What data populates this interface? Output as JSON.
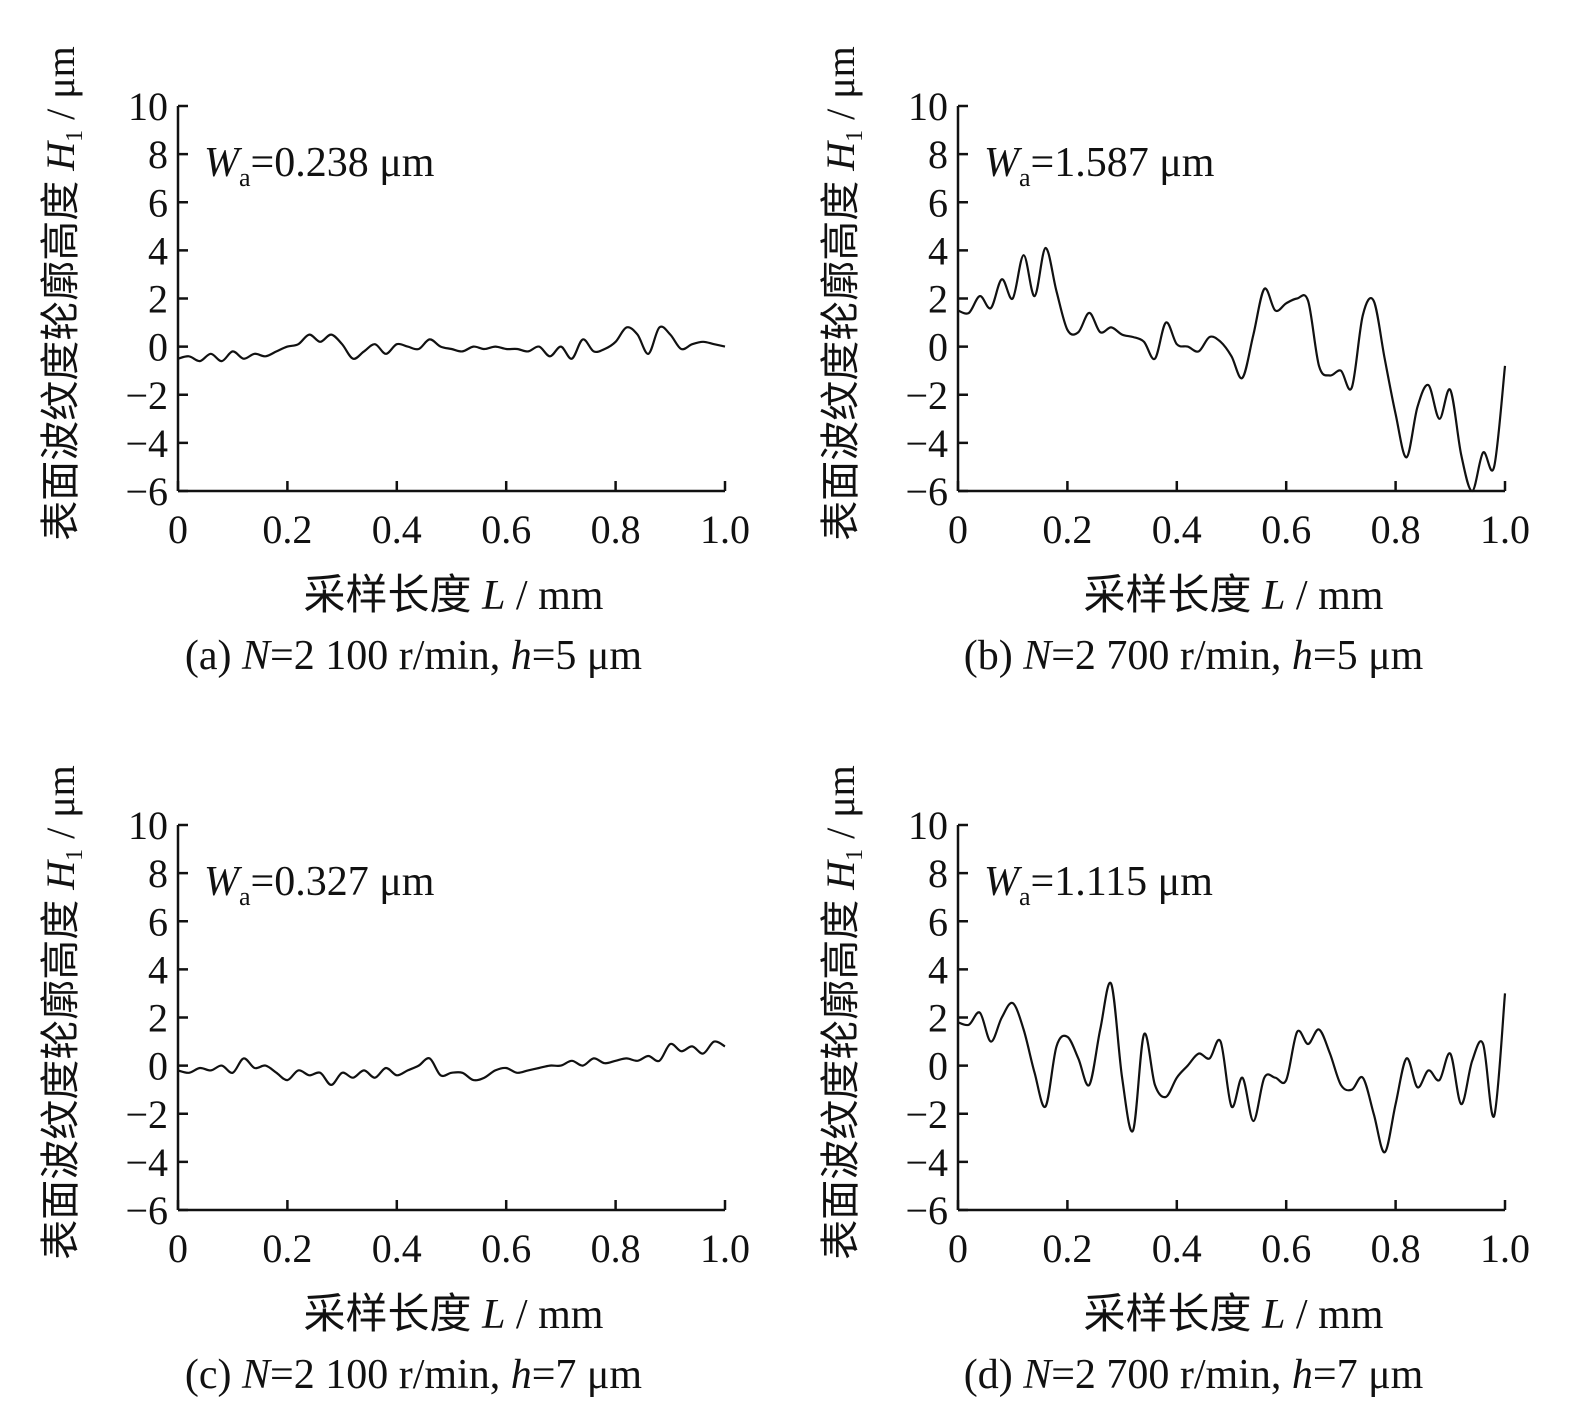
{
  "chart_data": [
    {
      "type": "line",
      "caption": "(a) N=2 100 r/min, h=5 μm",
      "caption_parts": {
        "prefix": "(a) ",
        "N_sym": "N",
        "N_val": "=2 100 r/min, ",
        "h_sym": "h",
        "h_val": "=5 μm"
      },
      "xlabel": "采样长度 L / mm",
      "xlabel_parts": {
        "pre": "采样长度 ",
        "sym": "L",
        "post": " / mm"
      },
      "ylabel": "表面波纹度轮廓高度 H1 / μm",
      "ylabel_parts": {
        "pre": "表面波纹度轮廓高度 ",
        "sym": "H",
        "sub": "1",
        "post": " / μm"
      },
      "annotation": {
        "sym": "W",
        "sub": "a",
        "value": "=0.238 μm"
      },
      "xlim": [
        0,
        1.0
      ],
      "ylim": [
        -6,
        10
      ],
      "xticks": [
        "0",
        "0.2",
        "0.4",
        "0.6",
        "0.8",
        "1.0"
      ],
      "yticks": [
        "10",
        "8",
        "6",
        "4",
        "2",
        "0",
        "−2",
        "−4",
        "−6"
      ],
      "x": [
        0,
        0.02,
        0.04,
        0.06,
        0.08,
        0.1,
        0.12,
        0.14,
        0.16,
        0.18,
        0.2,
        0.22,
        0.24,
        0.26,
        0.28,
        0.3,
        0.32,
        0.34,
        0.36,
        0.38,
        0.4,
        0.42,
        0.44,
        0.46,
        0.48,
        0.5,
        0.52,
        0.54,
        0.56,
        0.58,
        0.6,
        0.62,
        0.64,
        0.66,
        0.68,
        0.7,
        0.72,
        0.74,
        0.76,
        0.78,
        0.8,
        0.82,
        0.84,
        0.86,
        0.88,
        0.9,
        0.92,
        0.94,
        0.96,
        0.98,
        1.0
      ],
      "y": [
        -0.5,
        -0.4,
        -0.6,
        -0.3,
        -0.6,
        -0.2,
        -0.5,
        -0.3,
        -0.4,
        -0.2,
        0.0,
        0.1,
        0.5,
        0.2,
        0.5,
        0.1,
        -0.5,
        -0.2,
        0.1,
        -0.3,
        0.1,
        0.0,
        -0.1,
        0.3,
        0.0,
        -0.1,
        -0.2,
        0.0,
        -0.1,
        0.0,
        -0.1,
        -0.1,
        -0.2,
        0.0,
        -0.4,
        0.0,
        -0.5,
        0.3,
        -0.2,
        -0.1,
        0.2,
        0.8,
        0.5,
        -0.3,
        0.8,
        0.5,
        -0.1,
        0.1,
        0.2,
        0.1,
        0.0
      ]
    },
    {
      "type": "line",
      "caption": "(b) N=2 700 r/min, h=5 μm",
      "caption_parts": {
        "prefix": "(b) ",
        "N_sym": "N",
        "N_val": "=2 700 r/min, ",
        "h_sym": "h",
        "h_val": "=5 μm"
      },
      "xlabel": "采样长度 L / mm",
      "xlabel_parts": {
        "pre": "采样长度 ",
        "sym": "L",
        "post": " / mm"
      },
      "ylabel": "表面波纹度轮廓高度 H1 / μm",
      "ylabel_parts": {
        "pre": "表面波纹度轮廓高度 ",
        "sym": "H",
        "sub": "1",
        "post": " / μm"
      },
      "annotation": {
        "sym": "W",
        "sub": "a",
        "value": "=1.587 μm"
      },
      "xlim": [
        0,
        1.0
      ],
      "ylim": [
        -6,
        10
      ],
      "xticks": [
        "0",
        "0.2",
        "0.4",
        "0.6",
        "0.8",
        "1.0"
      ],
      "yticks": [
        "10",
        "8",
        "6",
        "4",
        "2",
        "0",
        "−2",
        "−4",
        "−6"
      ],
      "x": [
        0,
        0.02,
        0.04,
        0.06,
        0.08,
        0.1,
        0.12,
        0.14,
        0.16,
        0.18,
        0.2,
        0.22,
        0.24,
        0.26,
        0.28,
        0.3,
        0.32,
        0.34,
        0.36,
        0.38,
        0.4,
        0.42,
        0.44,
        0.46,
        0.48,
        0.5,
        0.52,
        0.54,
        0.56,
        0.58,
        0.6,
        0.62,
        0.64,
        0.66,
        0.68,
        0.7,
        0.72,
        0.74,
        0.76,
        0.78,
        0.8,
        0.82,
        0.84,
        0.86,
        0.88,
        0.9,
        0.92,
        0.94,
        0.96,
        0.98,
        1.0
      ],
      "y": [
        1.5,
        1.4,
        2.1,
        1.6,
        2.8,
        2.0,
        3.8,
        2.1,
        4.1,
        2.3,
        0.7,
        0.6,
        1.4,
        0.6,
        0.8,
        0.5,
        0.4,
        0.2,
        -0.5,
        1.0,
        0.1,
        0.0,
        -0.2,
        0.4,
        0.2,
        -0.4,
        -1.3,
        0.5,
        2.4,
        1.5,
        1.8,
        2.0,
        1.9,
        -0.8,
        -1.2,
        -1.0,
        -1.7,
        1.3,
        1.9,
        -0.5,
        -2.8,
        -4.6,
        -2.5,
        -1.6,
        -3.0,
        -1.8,
        -4.5,
        -6.0,
        -4.4,
        -5.0,
        -0.8
      ]
    },
    {
      "type": "line",
      "caption": "(c) N=2 100 r/min, h=7 μm",
      "caption_parts": {
        "prefix": "(c) ",
        "N_sym": "N",
        "N_val": "=2 100 r/min, ",
        "h_sym": "h",
        "h_val": "=7 μm"
      },
      "xlabel": "采样长度 L / mm",
      "xlabel_parts": {
        "pre": "采样长度 ",
        "sym": "L",
        "post": " / mm"
      },
      "ylabel": "表面波纹度轮廓高度 H1 / μm",
      "ylabel_parts": {
        "pre": "表面波纹度轮廓高度 ",
        "sym": "H",
        "sub": "1",
        "post": " / μm"
      },
      "annotation": {
        "sym": "W",
        "sub": "a",
        "value": "=0.327 μm"
      },
      "xlim": [
        0,
        1.0
      ],
      "ylim": [
        -6,
        10
      ],
      "xticks": [
        "0",
        "0.2",
        "0.4",
        "0.6",
        "0.8",
        "1.0"
      ],
      "yticks": [
        "10",
        "8",
        "6",
        "4",
        "2",
        "0",
        "−2",
        "−4",
        "−6"
      ],
      "x": [
        0,
        0.02,
        0.04,
        0.06,
        0.08,
        0.1,
        0.12,
        0.14,
        0.16,
        0.18,
        0.2,
        0.22,
        0.24,
        0.26,
        0.28,
        0.3,
        0.32,
        0.34,
        0.36,
        0.38,
        0.4,
        0.42,
        0.44,
        0.46,
        0.48,
        0.5,
        0.52,
        0.54,
        0.56,
        0.58,
        0.6,
        0.62,
        0.64,
        0.66,
        0.68,
        0.7,
        0.72,
        0.74,
        0.76,
        0.78,
        0.8,
        0.82,
        0.84,
        0.86,
        0.88,
        0.9,
        0.92,
        0.94,
        0.96,
        0.98,
        1.0
      ],
      "y": [
        -0.2,
        -0.3,
        -0.1,
        -0.2,
        0.0,
        -0.3,
        0.3,
        -0.1,
        0.0,
        -0.3,
        -0.6,
        -0.2,
        -0.4,
        -0.3,
        -0.8,
        -0.3,
        -0.5,
        -0.2,
        -0.5,
        -0.1,
        -0.4,
        -0.2,
        0.0,
        0.3,
        -0.4,
        -0.3,
        -0.3,
        -0.6,
        -0.5,
        -0.2,
        -0.1,
        -0.3,
        -0.2,
        -0.1,
        0.0,
        0.0,
        0.2,
        0.0,
        0.3,
        0.1,
        0.2,
        0.3,
        0.2,
        0.4,
        0.2,
        0.9,
        0.6,
        0.8,
        0.5,
        1.0,
        0.8
      ]
    },
    {
      "type": "line",
      "caption": "(d) N=2 700 r/min, h=7 μm",
      "caption_parts": {
        "prefix": "(d) ",
        "N_sym": "N",
        "N_val": "=2 700 r/min, ",
        "h_sym": "h",
        "h_val": "=7 μm"
      },
      "xlabel": "采样长度 L / mm",
      "xlabel_parts": {
        "pre": "采样长度 ",
        "sym": "L",
        "post": " / mm"
      },
      "ylabel": "表面波纹度轮廓高度 H1 / μm",
      "ylabel_parts": {
        "pre": "表面波纹度轮廓高度 ",
        "sym": "H",
        "sub": "1",
        "post": " / μm"
      },
      "annotation": {
        "sym": "W",
        "sub": "a",
        "value": "=1.115 μm"
      },
      "xlim": [
        0,
        1.0
      ],
      "ylim": [
        -6,
        10
      ],
      "xticks": [
        "0",
        "0.2",
        "0.4",
        "0.6",
        "0.8",
        "1.0"
      ],
      "yticks": [
        "10",
        "8",
        "6",
        "4",
        "2",
        "0",
        "−2",
        "−4",
        "−6"
      ],
      "x": [
        0,
        0.02,
        0.04,
        0.06,
        0.08,
        0.1,
        0.12,
        0.14,
        0.16,
        0.18,
        0.2,
        0.22,
        0.24,
        0.26,
        0.28,
        0.3,
        0.32,
        0.34,
        0.36,
        0.38,
        0.4,
        0.42,
        0.44,
        0.46,
        0.48,
        0.5,
        0.52,
        0.54,
        0.56,
        0.58,
        0.6,
        0.62,
        0.64,
        0.66,
        0.68,
        0.7,
        0.72,
        0.74,
        0.76,
        0.78,
        0.8,
        0.82,
        0.84,
        0.86,
        0.88,
        0.9,
        0.92,
        0.94,
        0.96,
        0.98,
        1.0
      ],
      "y": [
        1.8,
        1.7,
        2.2,
        1.0,
        2.0,
        2.6,
        1.5,
        -0.3,
        -1.7,
        0.8,
        1.2,
        0.3,
        -0.8,
        1.5,
        3.4,
        -0.5,
        -2.7,
        1.3,
        -0.8,
        -1.3,
        -0.5,
        0.0,
        0.5,
        0.3,
        1.0,
        -1.7,
        -0.5,
        -2.3,
        -0.5,
        -0.5,
        -0.6,
        1.4,
        0.9,
        1.5,
        0.5,
        -0.8,
        -1.0,
        -0.5,
        -2.0,
        -3.6,
        -1.6,
        0.3,
        -0.9,
        -0.2,
        -0.6,
        0.5,
        -1.6,
        0.2,
        0.9,
        -2.1,
        3.0
      ]
    }
  ]
}
